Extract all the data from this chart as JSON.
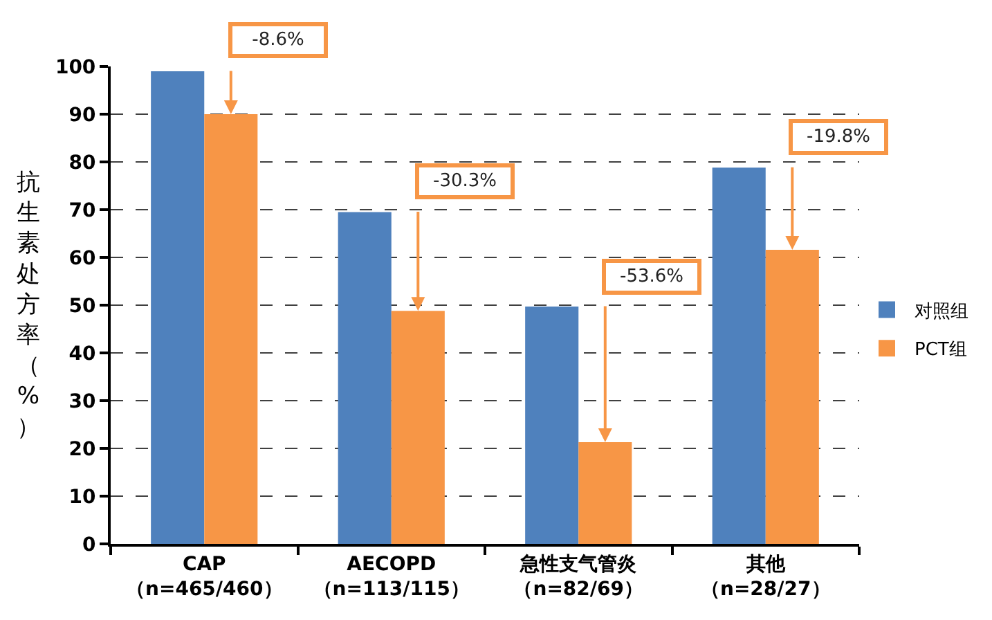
{
  "chart_data": {
    "type": "bar",
    "categories": [
      "CAP\n（n=465/460）",
      "AECOPD\n（n=113/115）",
      "急性支气管炎（n=82/69）",
      "其他（n=28/27）"
    ],
    "series": [
      {
        "name": "对照组",
        "color": "#4f81bd",
        "values": [
          99,
          69.5,
          49.7,
          78.8
        ]
      },
      {
        "name": "PCT组",
        "color": "#f79646",
        "values": [
          90,
          48.8,
          21.3,
          61.6
        ]
      }
    ],
    "ylabel": "抗生素处方率（%）",
    "ylim": [
      0,
      100
    ],
    "yticks": [
      0,
      10,
      20,
      30,
      40,
      50,
      60,
      70,
      80,
      90,
      100
    ],
    "grid": "y",
    "legend": "right",
    "annotations": [
      "-8.6%",
      "-30.3%",
      "-53.6%",
      "-19.8%"
    ]
  }
}
